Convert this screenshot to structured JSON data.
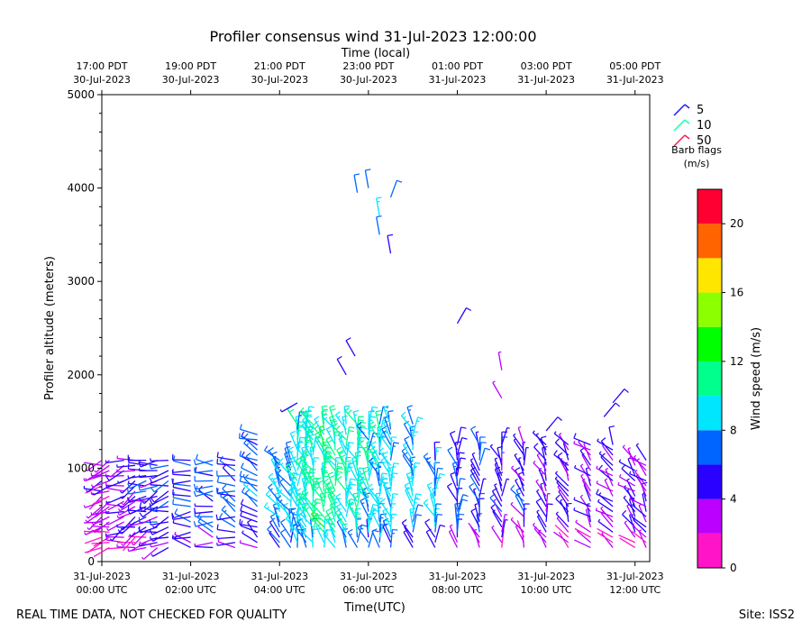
{
  "chart_data": {
    "type": "wind-barb-profile",
    "title": "Profiler consensus wind 31-Jul-2023 12:00:00",
    "top_axis_label": "Time (local)",
    "top_ticks": [
      {
        "hour": 0,
        "line1": "17:00 PDT",
        "line2": "30-Jul-2023"
      },
      {
        "hour": 2,
        "line1": "19:00 PDT",
        "line2": "30-Jul-2023"
      },
      {
        "hour": 4,
        "line1": "21:00 PDT",
        "line2": "30-Jul-2023"
      },
      {
        "hour": 6,
        "line1": "23:00 PDT",
        "line2": "30-Jul-2023"
      },
      {
        "hour": 8,
        "line1": "01:00 PDT",
        "line2": "31-Jul-2023"
      },
      {
        "hour": 10,
        "line1": "03:00 PDT",
        "line2": "31-Jul-2023"
      },
      {
        "hour": 12,
        "line1": "05:00 PDT",
        "line2": "31-Jul-2023"
      }
    ],
    "bottom_axis_label": "Time(UTC)",
    "bottom_ticks": [
      {
        "hour": 0,
        "line1": "31-Jul-2023",
        "line2": "00:00 UTC"
      },
      {
        "hour": 2,
        "line1": "31-Jul-2023",
        "line2": "02:00 UTC"
      },
      {
        "hour": 4,
        "line1": "31-Jul-2023",
        "line2": "04:00 UTC"
      },
      {
        "hour": 6,
        "line1": "31-Jul-2023",
        "line2": "06:00 UTC"
      },
      {
        "hour": 8,
        "line1": "31-Jul-2023",
        "line2": "08:00 UTC"
      },
      {
        "hour": 10,
        "line1": "31-Jul-2023",
        "line2": "10:00 UTC"
      },
      {
        "hour": 12,
        "line1": "31-Jul-2023",
        "line2": "12:00 UTC"
      }
    ],
    "xlim_hours_utc": [
      0,
      12.33
    ],
    "ylabel": "Profiler altitude (meters)",
    "ylim": [
      0,
      5000
    ],
    "y_ticks": [
      0,
      1000,
      2000,
      3000,
      4000,
      5000
    ],
    "legend": {
      "title_line1": "Barb flags",
      "title_line2": "(m/s)",
      "entries": [
        {
          "label": "5",
          "color": "#1a1aff"
        },
        {
          "label": "10",
          "color": "#19ffa8"
        },
        {
          "label": "50",
          "color": "#ff1a4a"
        }
      ]
    },
    "colorbar": {
      "label": "Wind speed (m/s)",
      "range": [
        0,
        22
      ],
      "ticks": [
        0,
        4,
        8,
        12,
        16,
        20
      ],
      "bins": [
        {
          "from": 0,
          "to": 2,
          "color": "#ff14c8"
        },
        {
          "from": 2,
          "to": 4,
          "color": "#bb00ff"
        },
        {
          "from": 4,
          "to": 6,
          "color": "#2a00ff"
        },
        {
          "from": 6,
          "to": 8,
          "color": "#0064ff"
        },
        {
          "from": 8,
          "to": 10,
          "color": "#00e6ff"
        },
        {
          "from": 10,
          "to": 12,
          "color": "#00ff8c"
        },
        {
          "from": 12,
          "to": 14,
          "color": "#00ff00"
        },
        {
          "from": 14,
          "to": 16,
          "color": "#8cff00"
        },
        {
          "from": 16,
          "to": 18,
          "color": "#ffe600"
        },
        {
          "from": 18,
          "to": 20,
          "color": "#ff6400"
        },
        {
          "from": 20,
          "to": 22,
          "color": "#ff0032"
        }
      ]
    },
    "barb_times_utc": [
      0.0,
      0.17,
      0.5,
      0.75,
      1.0,
      1.25,
      1.5,
      2.0,
      2.5,
      3.0,
      3.5,
      4.0,
      4.25,
      4.4,
      4.6,
      4.75,
      5.0,
      5.25,
      5.5,
      5.75,
      6.0,
      6.25,
      6.5,
      7.0,
      7.5,
      8.0,
      8.5,
      9.0,
      9.5,
      10.0,
      10.5,
      11.0,
      11.5,
      12.0,
      12.25
    ],
    "barb_profiles": [
      {
        "t": 0.1,
        "speed": 3,
        "dir": 250
      },
      {
        "t": 1.0,
        "speed": 5,
        "dir": 250
      },
      {
        "t": 3.5,
        "speed": 7,
        "dir": 300
      },
      {
        "t": 4.4,
        "speed": 9,
        "dir": 350
      },
      {
        "t": 5.0,
        "speed": 11,
        "dir": 340
      },
      {
        "t": 6.0,
        "speed": 9,
        "dir": 350
      },
      {
        "t": 7.0,
        "speed": 8,
        "dir": 350
      },
      {
        "t": 9.0,
        "speed": 5,
        "dir": 350
      },
      {
        "t": 11.0,
        "speed": 4,
        "dir": 320
      }
    ],
    "footer_left": "REAL TIME DATA, NOT CHECKED FOR QUALITY",
    "footer_right": "Site: ISS2"
  }
}
